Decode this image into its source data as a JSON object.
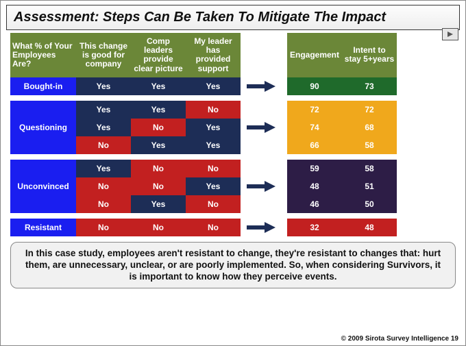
{
  "title": "Assessment:  Steps Can Be Taken To Mitigate The Impact",
  "headers": {
    "cat": "What % of Your Employees Are?",
    "c1": "This change is good for company",
    "c2": "Comp leaders provide clear picture",
    "c3": "My leader has provided support",
    "eng": "Engagement",
    "intent": "Intent to stay 5+years"
  },
  "groups": [
    {
      "name": "Bought-in",
      "valClass": "g1",
      "rows": [
        {
          "cells": [
            "Yes",
            "Yes",
            "Yes"
          ],
          "eng": "90",
          "intent": "73"
        }
      ]
    },
    {
      "name": "Questioning",
      "valClass": "g2",
      "rows": [
        {
          "cells": [
            "Yes",
            "Yes",
            "No"
          ],
          "eng": "72",
          "intent": "72"
        },
        {
          "cells": [
            "Yes",
            "No",
            "Yes"
          ],
          "eng": "74",
          "intent": "68"
        },
        {
          "cells": [
            "No",
            "Yes",
            "Yes"
          ],
          "eng": "66",
          "intent": "58"
        }
      ]
    },
    {
      "name": "Unconvinced",
      "valClass": "g3",
      "rows": [
        {
          "cells": [
            "Yes",
            "No",
            "No"
          ],
          "eng": "59",
          "intent": "58"
        },
        {
          "cells": [
            "No",
            "No",
            "Yes"
          ],
          "eng": "48",
          "intent": "51"
        },
        {
          "cells": [
            "No",
            "Yes",
            "No"
          ],
          "eng": "46",
          "intent": "50"
        }
      ]
    },
    {
      "name": "Resistant",
      "valClass": "g4",
      "rows": [
        {
          "cells": [
            "No",
            "No",
            "No"
          ],
          "eng": "32",
          "intent": "48"
        }
      ]
    }
  ],
  "callout": "In this case study, employees aren't resistant to change, they're resistant to changes that: hurt them, are unnecessary, unclear, or are poorly implemented. So, when considering Survivors, it is important to know how they perceive events.",
  "footer": "© 2009 Sirota Survey Intelligence  19",
  "colors": {
    "yes": "#1d2d56",
    "no": "#c22020",
    "cat": "#1a1ef0",
    "header": "#6b8738"
  }
}
